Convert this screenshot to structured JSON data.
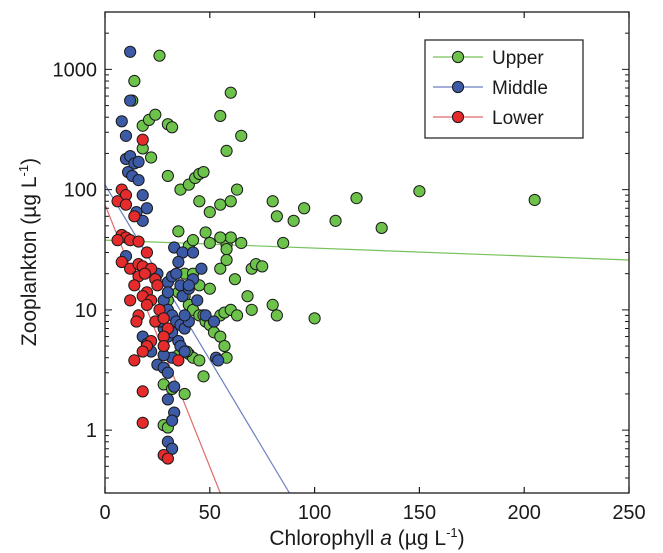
{
  "chart_data": {
    "type": "scatter",
    "x_axis": {
      "label_prefix": "Chlorophyll ",
      "label_italic": "a",
      "label_unit": "  (µg L",
      "label_sup": "-1",
      "label_close": ")",
      "range": [
        0,
        250
      ],
      "ticks": [
        0,
        50,
        100,
        150,
        200,
        250
      ],
      "tick_labels": [
        "0",
        "50",
        "100",
        "150",
        "200",
        "250"
      ]
    },
    "y_axis": {
      "label_main": "Zooplankton (µg L",
      "label_sup": "-1",
      "label_close": ")",
      "scale": "log",
      "range": [
        0.3,
        3000
      ],
      "ticks": [
        1,
        10,
        100,
        1000
      ],
      "tick_labels": [
        "1",
        "10",
        "100",
        "1000"
      ]
    },
    "grid": false,
    "legend": {
      "position": "top-right"
    },
    "series": [
      {
        "name": "Upper",
        "color": "#6cc24a",
        "line_color": "#77c25a",
        "fit": [
          [
            0,
            38
          ],
          [
            250,
            26
          ]
        ],
        "points": [
          [
            26,
            1300
          ],
          [
            14,
            800
          ],
          [
            13,
            550
          ],
          [
            18,
            340
          ],
          [
            21,
            380
          ],
          [
            24,
            420
          ],
          [
            30,
            350
          ],
          [
            32,
            330
          ],
          [
            60,
            640
          ],
          [
            55,
            410
          ],
          [
            58,
            210
          ],
          [
            65,
            280
          ],
          [
            18,
            220
          ],
          [
            22,
            185
          ],
          [
            30,
            130
          ],
          [
            36,
            100
          ],
          [
            40,
            110
          ],
          [
            43,
            125
          ],
          [
            45,
            135
          ],
          [
            47,
            140
          ],
          [
            45,
            80
          ],
          [
            50,
            65
          ],
          [
            55,
            75
          ],
          [
            60,
            80
          ],
          [
            63,
            100
          ],
          [
            58,
            35
          ],
          [
            60,
            40
          ],
          [
            65,
            36
          ],
          [
            70,
            22
          ],
          [
            72,
            24
          ],
          [
            75,
            23
          ],
          [
            80,
            80
          ],
          [
            82,
            60
          ],
          [
            85,
            36
          ],
          [
            90,
            55
          ],
          [
            95,
            70
          ],
          [
            110,
            55
          ],
          [
            120,
            85
          ],
          [
            132,
            48
          ],
          [
            150,
            97
          ],
          [
            205,
            82
          ],
          [
            35,
            45
          ],
          [
            40,
            34
          ],
          [
            42,
            38
          ],
          [
            48,
            44
          ],
          [
            50,
            36
          ],
          [
            55,
            40
          ],
          [
            58,
            32
          ],
          [
            38,
            20
          ],
          [
            42,
            20
          ],
          [
            45,
            16
          ],
          [
            50,
            15
          ],
          [
            55,
            22
          ],
          [
            58,
            26
          ],
          [
            62,
            18
          ],
          [
            68,
            13
          ],
          [
            70,
            10
          ],
          [
            80,
            11
          ],
          [
            82,
            9
          ],
          [
            100,
            8.5
          ],
          [
            30,
            12
          ],
          [
            35,
            14
          ],
          [
            38,
            13
          ],
          [
            40,
            11
          ],
          [
            42,
            10
          ],
          [
            45,
            9
          ],
          [
            47,
            9
          ],
          [
            48,
            8
          ],
          [
            50,
            7.5
          ],
          [
            52,
            6.5
          ],
          [
            55,
            9
          ],
          [
            57,
            9.5
          ],
          [
            60,
            10
          ],
          [
            63,
            9
          ],
          [
            40,
            4.3
          ],
          [
            42,
            4
          ],
          [
            45,
            3.8
          ],
          [
            47,
            2.8
          ],
          [
            55,
            6
          ],
          [
            57,
            5
          ],
          [
            58,
            4
          ],
          [
            38,
            2
          ],
          [
            28,
            2.4
          ],
          [
            32,
            2.2
          ],
          [
            28,
            1.1
          ],
          [
            30,
            1.05
          ],
          [
            35,
            4.2
          ],
          [
            39,
            4.5
          ]
        ]
      },
      {
        "name": "Middle",
        "color": "#3c5aa6",
        "line_color": "#6b7fc0",
        "fit": [
          [
            0,
            110
          ],
          [
            88,
            0.3
          ]
        ],
        "points": [
          [
            12,
            1400
          ],
          [
            12,
            550
          ],
          [
            8,
            370
          ],
          [
            10,
            280
          ],
          [
            10,
            180
          ],
          [
            12,
            190
          ],
          [
            14,
            165
          ],
          [
            16,
            170
          ],
          [
            11,
            140
          ],
          [
            13,
            130
          ],
          [
            16,
            120
          ],
          [
            18,
            90
          ],
          [
            20,
            70
          ],
          [
            15,
            65
          ],
          [
            18,
            55
          ],
          [
            10,
            28
          ],
          [
            25,
            20
          ],
          [
            30,
            17
          ],
          [
            32,
            19
          ],
          [
            34,
            20
          ],
          [
            36,
            16
          ],
          [
            37,
            13
          ],
          [
            40,
            15
          ],
          [
            42,
            18
          ],
          [
            46,
            22
          ],
          [
            28,
            12
          ],
          [
            30,
            10
          ],
          [
            32,
            9
          ],
          [
            34,
            8
          ],
          [
            36,
            7.5
          ],
          [
            38,
            7
          ],
          [
            40,
            8
          ],
          [
            28,
            7
          ],
          [
            30,
            6
          ],
          [
            32,
            6.5
          ],
          [
            35,
            5.5
          ],
          [
            36,
            5
          ],
          [
            38,
            4.5
          ],
          [
            32,
            4
          ],
          [
            28,
            4.2
          ],
          [
            22,
            4.5
          ],
          [
            18,
            6
          ],
          [
            20,
            5.2
          ],
          [
            25,
            3.5
          ],
          [
            28,
            3.3
          ],
          [
            30,
            3
          ],
          [
            48,
            9
          ],
          [
            52,
            8
          ],
          [
            53,
            4
          ],
          [
            54,
            3.8
          ],
          [
            40,
            16
          ],
          [
            44,
            12
          ],
          [
            38,
            9
          ],
          [
            33,
            33
          ],
          [
            37,
            30
          ],
          [
            42,
            30
          ],
          [
            26,
            8
          ],
          [
            30,
            14
          ],
          [
            35,
            25
          ],
          [
            33,
            2.3
          ],
          [
            30,
            1.8
          ],
          [
            33,
            1.4
          ],
          [
            32,
            1.2
          ],
          [
            30,
            0.8
          ],
          [
            32,
            0.7
          ]
        ]
      },
      {
        "name": "Lower",
        "color": "#e52b2b",
        "line_color": "#e06b6b",
        "fit": [
          [
            0,
            75
          ],
          [
            55,
            0.3
          ]
        ],
        "points": [
          [
            18,
            260
          ],
          [
            8,
            100
          ],
          [
            10,
            90
          ],
          [
            6,
            80
          ],
          [
            10,
            75
          ],
          [
            14,
            60
          ],
          [
            8,
            42
          ],
          [
            10,
            40
          ],
          [
            6,
            38
          ],
          [
            12,
            38
          ],
          [
            16,
            37
          ],
          [
            20,
            30
          ],
          [
            8,
            25
          ],
          [
            12,
            22
          ],
          [
            16,
            24
          ],
          [
            18,
            23
          ],
          [
            22,
            22
          ],
          [
            16,
            19
          ],
          [
            24,
            18
          ],
          [
            20,
            14
          ],
          [
            14,
            16
          ],
          [
            12,
            12
          ],
          [
            18,
            13
          ],
          [
            22,
            12
          ],
          [
            26,
            10
          ],
          [
            20,
            11
          ],
          [
            16,
            9
          ],
          [
            24,
            8
          ],
          [
            28,
            8.5
          ],
          [
            30,
            7
          ],
          [
            28,
            6
          ],
          [
            22,
            5.5
          ],
          [
            20,
            5
          ],
          [
            18,
            4.5
          ],
          [
            14,
            3.8
          ],
          [
            35,
            3.8
          ],
          [
            28,
            5
          ],
          [
            18,
            2.1
          ],
          [
            18,
            1.15
          ],
          [
            28,
            0.62
          ],
          [
            30,
            0.58
          ],
          [
            15,
            8
          ],
          [
            25,
            16
          ],
          [
            19,
            20
          ]
        ]
      }
    ]
  }
}
